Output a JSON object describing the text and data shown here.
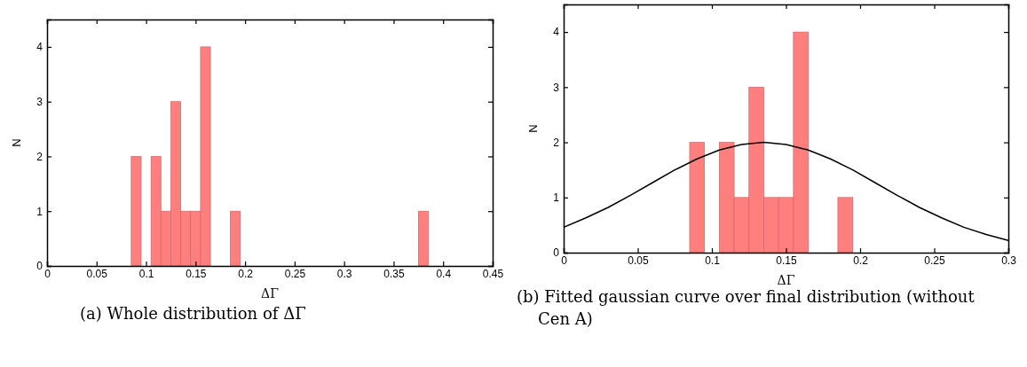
{
  "chart_data": [
    {
      "type": "histogram",
      "xlabel": "ΔΓ",
      "ylabel": "N",
      "color": "#ff7f7f",
      "bins": [
        0.085,
        0.095,
        0.105,
        0.115,
        0.125,
        0.135,
        0.145,
        0.155,
        0.165,
        0.175,
        0.185,
        0.195,
        0.205,
        0.215,
        0.225,
        0.235,
        0.245,
        0.255,
        0.265,
        0.275,
        0.285,
        0.295,
        0.305,
        0.315,
        0.325,
        0.335,
        0.345,
        0.355,
        0.365,
        0.375,
        0.385
      ],
      "values": [
        2,
        0,
        2,
        1,
        3,
        1,
        1,
        4,
        0,
        0,
        1,
        0,
        0,
        0,
        0,
        0,
        0,
        0,
        0,
        0,
        0,
        0,
        0,
        0,
        0,
        0,
        0,
        0,
        0,
        1
      ],
      "xlim": [
        0,
        0.45
      ],
      "xticks": [
        0,
        0.05,
        0.1,
        0.15,
        0.2,
        0.25,
        0.3,
        0.35,
        0.4,
        0.45
      ],
      "ylim": [
        0,
        4.5
      ],
      "yticks": [
        0,
        1,
        2,
        3,
        4
      ],
      "annotations": [
        "(a) Whole distribution of ΔΓ"
      ]
    },
    {
      "type": "histogram",
      "xlabel": "ΔΓ",
      "ylabel": "N",
      "color": "#ff7f7f",
      "bins": [
        0.085,
        0.095,
        0.105,
        0.115,
        0.125,
        0.135,
        0.145,
        0.155,
        0.165,
        0.175,
        0.185,
        0.195
      ],
      "values": [
        2,
        0,
        2,
        1,
        3,
        1,
        1,
        4,
        0,
        0,
        1
      ],
      "series": [
        {
          "type": "line",
          "color": "#000000",
          "x": [
            0,
            0.015,
            0.03,
            0.045,
            0.06,
            0.075,
            0.09,
            0.105,
            0.12,
            0.135,
            0.15,
            0.165,
            0.18,
            0.195,
            0.21,
            0.225,
            0.24,
            0.255,
            0.27,
            0.285,
            0.3
          ],
          "values": [
            0.46,
            0.63,
            0.82,
            1.04,
            1.27,
            1.5,
            1.7,
            1.86,
            1.96,
            2,
            1.96,
            1.86,
            1.7,
            1.5,
            1.27,
            1.04,
            0.82,
            0.63,
            0.46,
            0.33,
            0.22
          ]
        }
      ],
      "xlim": [
        0,
        0.3
      ],
      "xticks": [
        0,
        0.05,
        0.1,
        0.15,
        0.2,
        0.25,
        0.3
      ],
      "ylim": [
        0,
        4.5
      ],
      "yticks": [
        0,
        1,
        2,
        3,
        4
      ],
      "annotations": [
        "(b) Fitted gaussian curve over final distribution (without Cen A)"
      ]
    }
  ]
}
